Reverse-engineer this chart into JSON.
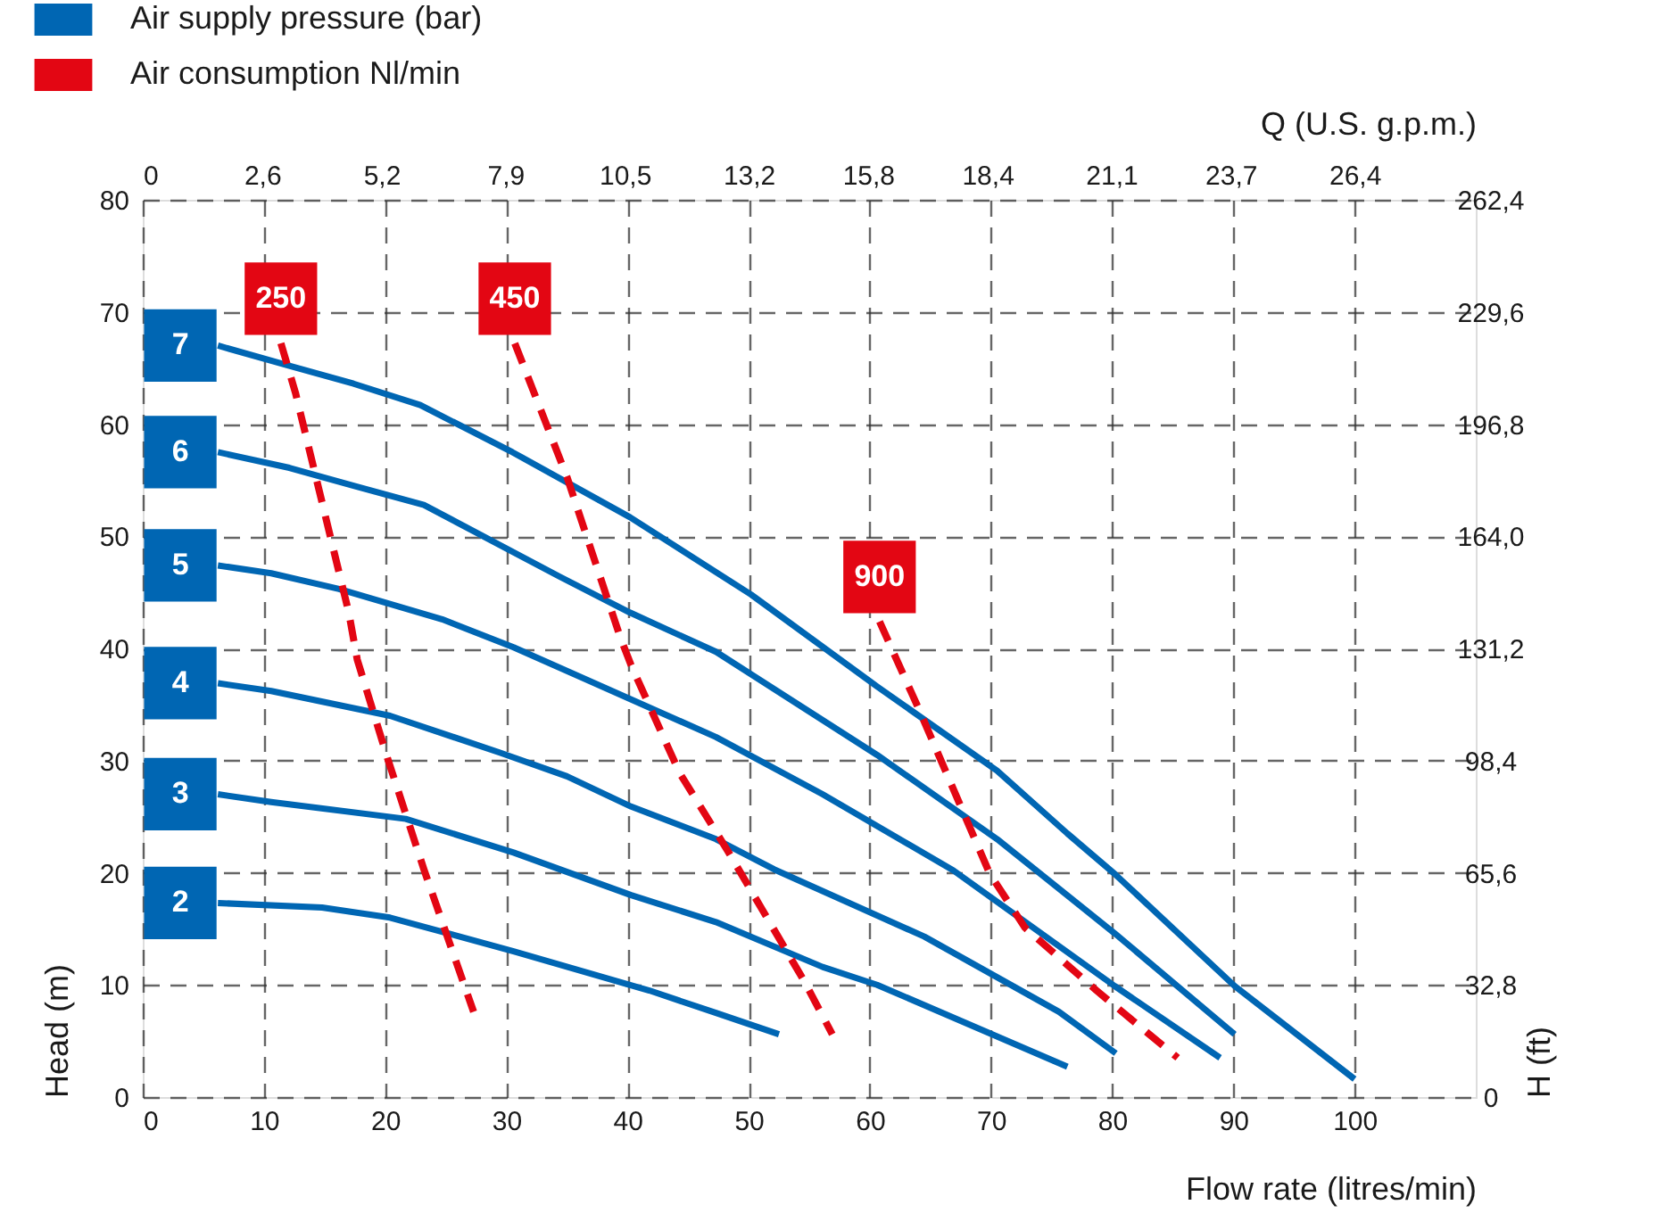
{
  "chart_data": {
    "type": "line",
    "xlabel": "Flow rate (litres/min)",
    "ylabel": "Head (m)",
    "x2label": "Q (U.S. g.p.m.)",
    "y2label": "H (ft)",
    "xlim": [
      0,
      110
    ],
    "ylim": [
      0,
      80
    ],
    "x2lim": [
      0,
      29.04
    ],
    "y2lim": [
      0,
      262.4
    ],
    "xticks": [
      0,
      10,
      20,
      30,
      40,
      50,
      60,
      70,
      80,
      90,
      100
    ],
    "yticks": [
      0,
      10,
      20,
      30,
      40,
      50,
      60,
      70,
      80
    ],
    "x2ticks": [
      0,
      {
        "value": 2.6,
        "label": "2,6"
      },
      {
        "value": 5.2,
        "label": "5,2"
      },
      {
        "value": 7.9,
        "label": "7,9"
      },
      {
        "value": 10.5,
        "label": "10,5"
      },
      {
        "value": 13.2,
        "label": "13,2"
      },
      {
        "value": 15.8,
        "label": "15,8"
      },
      {
        "value": 18.4,
        "label": "18,4"
      },
      {
        "value": 21.1,
        "label": "21,1"
      },
      {
        "value": 23.7,
        "label": "23,7"
      },
      {
        "value": 26.4,
        "label": "26,4"
      }
    ],
    "y2ticks": [
      0,
      {
        "value": 32.8,
        "label": "32,8"
      },
      {
        "value": 65.6,
        "label": "65,6"
      },
      {
        "value": 98.4,
        "label": "98,4"
      },
      {
        "value": 131.2,
        "label": "131,2"
      },
      {
        "value": 164.0,
        "label": "164,0"
      },
      {
        "value": 196.8,
        "label": "196,8"
      },
      {
        "value": 229.6,
        "label": "229,6"
      },
      {
        "value": 262.4,
        "label": "262,4"
      }
    ],
    "grid": true,
    "legend": "top left",
    "annotations": [
      {
        "text": "7",
        "x": 6.2,
        "y": 67
      },
      {
        "text": "6",
        "x": 6.2,
        "y": 57.5
      },
      {
        "text": "5",
        "x": 6.2,
        "y": 47.4
      },
      {
        "text": "4",
        "x": 6.2,
        "y": 36.9
      },
      {
        "text": "3",
        "x": 6.2,
        "y": 27
      },
      {
        "text": "2",
        "x": 6.2,
        "y": 17.3
      },
      {
        "text": "250",
        "x": 11.4,
        "y": 67.2
      },
      {
        "text": "450",
        "x": 30.7,
        "y": 67.2
      },
      {
        "text": "900",
        "x": 60.8,
        "y": 42.4
      }
    ],
    "series": [
      {
        "name": "Air supply pressure (bar)",
        "color": "#0066b3",
        "line_style": "solid",
        "x": [
          6.2,
          12.1,
          17.4,
          22.9,
          30.5,
          40.2,
          50.2,
          60.6,
          70.5,
          76.3,
          80.2,
          90.1,
          100
        ],
        "values": [
          67,
          65.2,
          63.6,
          61.7,
          57.5,
          51.7,
          44.8,
          36.6,
          29.1,
          23.5,
          19.9,
          9.9,
          1.6
        ]
      },
      {
        "color": "#0066b3",
        "line_style": "solid",
        "x": [
          6.2,
          12.1,
          17.4,
          23.2,
          34.4,
          40.2,
          47.3,
          60.6,
          70.5,
          80.2,
          90.1
        ],
        "values": [
          57.5,
          56.1,
          54.5,
          52.8,
          46.4,
          43.2,
          39.7,
          30.5,
          23,
          14.6,
          5.6
        ]
      },
      {
        "color": "#0066b3",
        "line_style": "solid",
        "x": [
          6.2,
          10.6,
          16.2,
          24.7,
          30.6,
          47.3,
          56.1,
          66.9,
          80.2,
          88.9
        ],
        "values": [
          47.4,
          46.7,
          45.3,
          42.6,
          40.1,
          32.1,
          27,
          20.2,
          9.9,
          3.5
        ]
      },
      {
        "color": "#0066b3",
        "line_style": "solid",
        "x": [
          6.2,
          10.6,
          20.4,
          29.5,
          35,
          40.3,
          47.3,
          52.1,
          64.5,
          75.6,
          80.3
        ],
        "values": [
          36.9,
          36.2,
          34,
          30.7,
          28.6,
          25.9,
          23,
          20.3,
          14.3,
          7.6,
          3.9
        ]
      },
      {
        "color": "#0066b3",
        "line_style": "solid",
        "x": [
          6.2,
          10.6,
          21.7,
          30.6,
          40.3,
          47.3,
          56.1,
          60.6,
          76.3
        ],
        "values": [
          27,
          26.3,
          24.8,
          21.8,
          18,
          15.6,
          11.6,
          10,
          2.7
        ]
      },
      {
        "color": "#0066b3",
        "line_style": "solid",
        "x": [
          6.2,
          14.8,
          20.4,
          30.6,
          41.8,
          47.3,
          52.5
        ],
        "values": [
          17.3,
          16.9,
          16,
          13,
          9.5,
          7.5,
          5.6
        ]
      },
      {
        "name": "Air consumption Nl/min",
        "color": "#e30613",
        "line_style": "dashed",
        "x": [
          11.4,
          12.6,
          17,
          17.7,
          20.2,
          23.2,
          27.3
        ],
        "values": [
          67.2,
          62.8,
          43.2,
          39,
          30.2,
          20.3,
          7.6
        ]
      },
      {
        "color": "#e30613",
        "line_style": "dashed",
        "x": [
          30.7,
          35,
          39.4,
          40.3,
          44.3,
          48.3,
          54.6,
          56.9
        ],
        "values": [
          67.2,
          55.3,
          41,
          38.5,
          28.9,
          21.9,
          10.3,
          5.6
        ]
      },
      {
        "color": "#e30613",
        "line_style": "dashed",
        "x": [
          60.8,
          64.2,
          69.9,
          72.8,
          78.7,
          85.4
        ],
        "values": [
          42.4,
          34.2,
          19.9,
          15.1,
          9.5,
          3.5
        ]
      }
    ]
  }
}
